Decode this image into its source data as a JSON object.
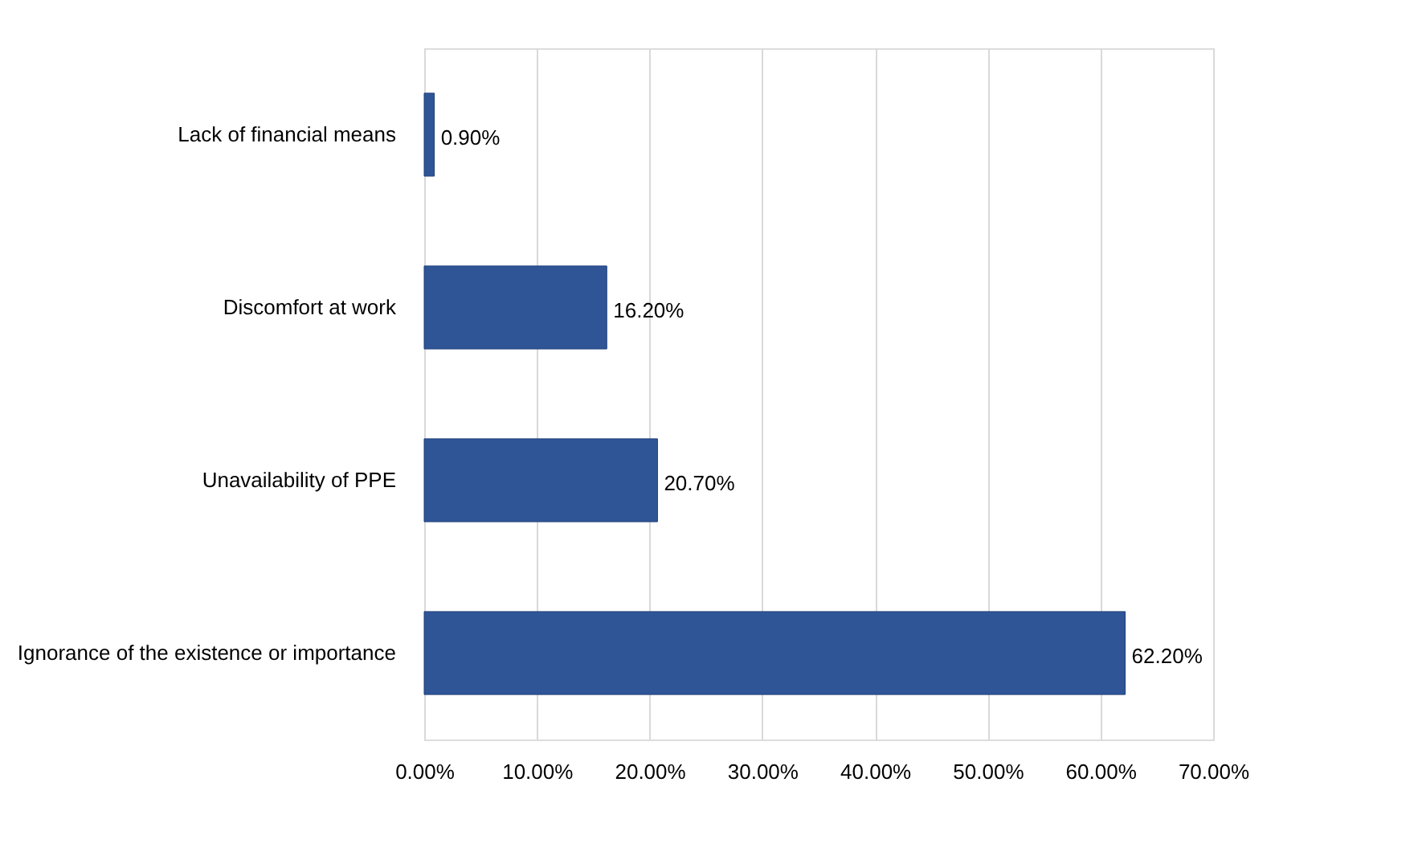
{
  "chart_data": {
    "type": "bar",
    "orientation": "horizontal",
    "categories": [
      "Lack of financial means",
      "Discomfort at work",
      "Unavailability of PPE",
      "Ignorance of the existence or importance"
    ],
    "values": [
      0.9,
      16.2,
      20.7,
      62.2
    ],
    "value_labels": [
      "0.90%",
      "16.20%",
      "20.70%",
      "62.20%"
    ],
    "color": "#2f5597",
    "xlim": [
      0,
      70
    ],
    "xticks": [
      {
        "value": 0,
        "label": "0.00%"
      },
      {
        "value": 10,
        "label": "10.00%"
      },
      {
        "value": 20,
        "label": "20.00%"
      },
      {
        "value": 30,
        "label": "30.00%"
      },
      {
        "value": 40,
        "label": "40.00%"
      },
      {
        "value": 50,
        "label": "50.00%"
      },
      {
        "value": 60,
        "label": "60.00%"
      },
      {
        "value": 70,
        "label": "70.00%"
      }
    ],
    "grid": "x"
  }
}
